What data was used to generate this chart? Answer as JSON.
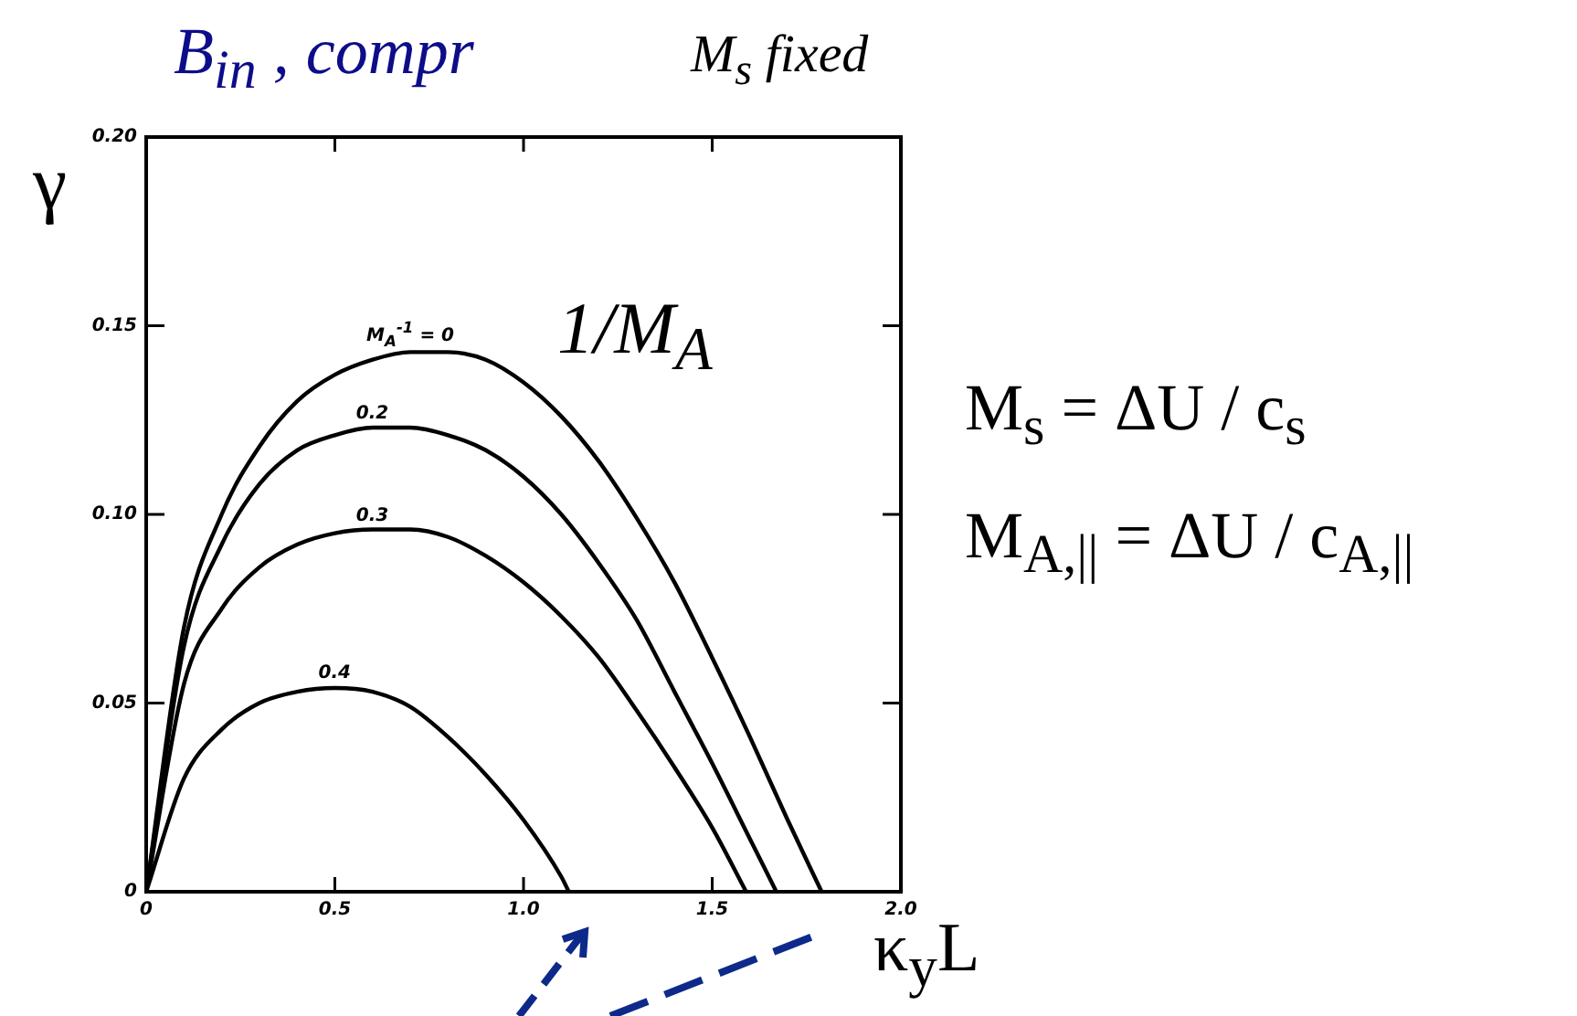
{
  "chart_data": {
    "type": "line",
    "title": "B$_{in}$ , compr",
    "subtitle": "M$_{s}$ fixed",
    "xlabel": "κ$_{y}$L",
    "ylabel": "γ",
    "legend_title": "1/M$_{A}$",
    "annotations": [
      "M$_{s}$ = ΔU / c$_{s}$",
      "M$_{A,||}$ = ΔU / c$_{A,||}$"
    ],
    "xlim": [
      0,
      2
    ],
    "ylim": [
      0,
      0.2
    ],
    "xticks": [
      0,
      0.5,
      {
        "value": 1,
        "label": "1.0"
      },
      1.5,
      {
        "value": 2,
        "label": "2.0"
      }
    ],
    "yticks": [
      0,
      0.05,
      {
        "value": 0.1,
        "label": "0.10"
      },
      0.15,
      {
        "value": 0.2,
        "label": "0.20"
      }
    ],
    "series": [
      {
        "name": "M$_{A}$$^{-1}$ = 0",
        "color": "#000000",
        "x": [
          0,
          0.1,
          0.2,
          0.3,
          0.4,
          0.5,
          0.6,
          0.7,
          0.8,
          0.9,
          1.0,
          1.1,
          1.2,
          1.3,
          1.4,
          1.5,
          1.6,
          1.7,
          1.79
        ],
        "values": [
          0,
          0.07,
          0.1,
          0.118,
          0.13,
          0.137,
          0.141,
          0.143,
          0.143,
          0.141,
          0.135,
          0.126,
          0.114,
          0.099,
          0.082,
          0.062,
          0.041,
          0.019,
          0
        ]
      },
      {
        "name": "0.2",
        "color": "#000000",
        "x": [
          0,
          0.1,
          0.2,
          0.3,
          0.4,
          0.5,
          0.6,
          0.7,
          0.8,
          0.9,
          1.0,
          1.1,
          1.2,
          1.3,
          1.4,
          1.5,
          1.6,
          1.67
        ],
        "values": [
          0,
          0.065,
          0.092,
          0.108,
          0.117,
          0.121,
          0.123,
          0.123,
          0.121,
          0.117,
          0.11,
          0.1,
          0.087,
          0.072,
          0.053,
          0.034,
          0.014,
          0
        ]
      },
      {
        "name": "0.3",
        "color": "#000000",
        "x": [
          0,
          0.1,
          0.2,
          0.3,
          0.4,
          0.5,
          0.6,
          0.7,
          0.8,
          0.9,
          1.0,
          1.1,
          1.2,
          1.3,
          1.4,
          1.5,
          1.59
        ],
        "values": [
          0,
          0.055,
          0.075,
          0.086,
          0.092,
          0.095,
          0.096,
          0.096,
          0.094,
          0.089,
          0.082,
          0.073,
          0.062,
          0.048,
          0.033,
          0.017,
          0
        ]
      },
      {
        "name": "0.4",
        "color": "#000000",
        "x": [
          0,
          0.1,
          0.2,
          0.3,
          0.4,
          0.5,
          0.6,
          0.7,
          0.8,
          0.9,
          1.0,
          1.1,
          1.12
        ],
        "values": [
          0,
          0.03,
          0.043,
          0.05,
          0.053,
          0.054,
          0.053,
          0.049,
          0.041,
          0.031,
          0.019,
          0.004,
          0
        ]
      }
    ]
  }
}
